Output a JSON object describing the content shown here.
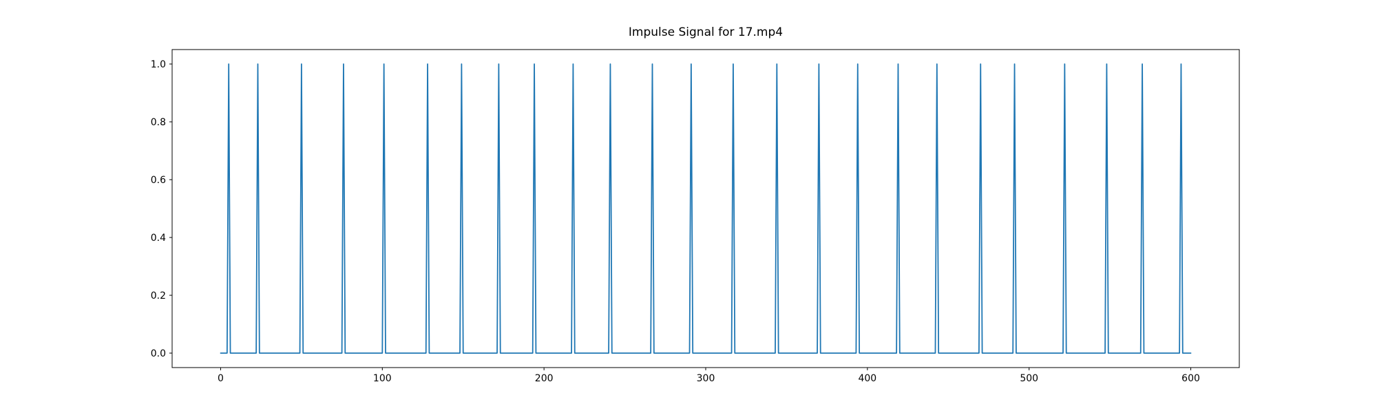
{
  "figure": {
    "title": "Impulse Signal for 17.mp4"
  },
  "chart_data": {
    "type": "line",
    "title": "Impulse Signal for 17.mp4",
    "xlabel": "",
    "ylabel": "",
    "grid": false,
    "legend": "none",
    "line_color": "#1f77b4",
    "spine_color": "#000000",
    "background_color": "#ffffff",
    "x_range": [
      0,
      600
    ],
    "xlim": [
      -30,
      630
    ],
    "ylim": [
      -0.05,
      1.05
    ],
    "x_tick_labels": [
      "0",
      "100",
      "200",
      "300",
      "400",
      "500",
      "600"
    ],
    "y_tick_labels": [
      "0.0",
      "0.2",
      "0.4",
      "0.6",
      "0.8",
      "1.0"
    ],
    "baseline_value": 0,
    "impulse_value": 1,
    "impulse_half_width": 1,
    "impulse_positions": [
      5,
      23,
      50,
      76,
      101,
      128,
      149,
      172,
      194,
      218,
      241,
      267,
      291,
      317,
      344,
      370,
      394,
      419,
      443,
      470,
      491,
      522,
      548,
      570,
      594
    ]
  }
}
